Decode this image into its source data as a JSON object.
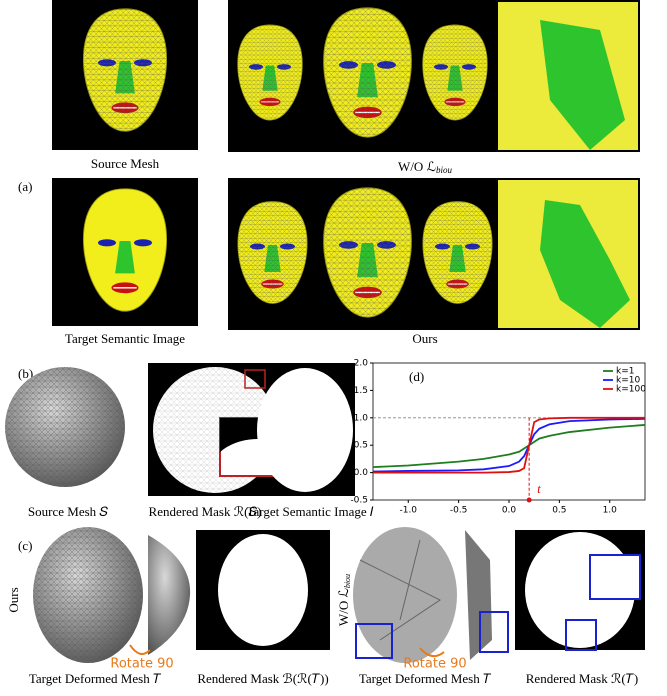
{
  "panel_labels": {
    "a": "(a)",
    "b": "(b)",
    "c": "(c)"
  },
  "panel_a": {
    "source_caption": "Source Mesh",
    "wo_caption": {
      "prefix": "W/O  ℒ",
      "subscript": "biou"
    },
    "target_caption": "Target Semantic Image",
    "ours_caption": "Ours"
  },
  "panel_b": {
    "captions": [
      "Source Mesh 𝑆",
      "Rendered Mask ℛ(𝑆)",
      "Target Semantic Image 𝐼"
    ]
  },
  "panel_c": {
    "row_label_ours": "Ours",
    "row_label_wo": {
      "prefix": "W/O ℒ",
      "subscript": "biou"
    },
    "rotate_labels": [
      "Rotate 90",
      "Rotate 90"
    ],
    "captions": [
      "Target Deformed Mesh 𝑇",
      "Rendered Mask ℬ(ℛ(𝑇))",
      "Target Deformed Mesh 𝑇",
      "Rendered Mask ℛ(𝑇)"
    ]
  },
  "chart_data": {
    "type": "line",
    "annotation": "(d)",
    "x": [
      -1.35,
      -1.0,
      -0.5,
      -0.25,
      0,
      0.1,
      0.15,
      0.2,
      0.25,
      0.3,
      0.4,
      0.6,
      1.0,
      1.35
    ],
    "series": [
      {
        "name": "k=1",
        "color": "#1e7d1e",
        "values": [
          0.1,
          0.13,
          0.2,
          0.25,
          0.33,
          0.38,
          0.44,
          0.5,
          0.56,
          0.62,
          0.67,
          0.74,
          0.82,
          0.87
        ]
      },
      {
        "name": "k=10",
        "color": "#1a1aff",
        "values": [
          0.02,
          0.03,
          0.04,
          0.06,
          0.12,
          0.2,
          0.3,
          0.5,
          0.7,
          0.8,
          0.88,
          0.94,
          0.97,
          0.98
        ]
      },
      {
        "name": "k=100",
        "color": "#e01010",
        "values": [
          0,
          0,
          0,
          0,
          0.01,
          0.03,
          0.08,
          0.5,
          0.92,
          0.97,
          0.99,
          1,
          1,
          1
        ]
      }
    ],
    "xlim": [
      -1.35,
      1.35
    ],
    "ylim": [
      -0.5,
      2.0
    ],
    "xticks": [
      {
        "value": -1,
        "label": "-1.0"
      },
      -0.5,
      {
        "value": 0,
        "label": "0.0"
      },
      0.5,
      {
        "value": 1,
        "label": "1.0"
      }
    ],
    "yticks": [
      -0.5,
      {
        "value": 0,
        "label": "0.0"
      },
      0.5,
      {
        "value": 1,
        "label": "1.0"
      },
      1.5,
      {
        "value": 2,
        "label": "2.0"
      }
    ],
    "reference_line": 1.0,
    "threshold": {
      "value": 0.2,
      "label": "t"
    },
    "legend": "upper right"
  }
}
